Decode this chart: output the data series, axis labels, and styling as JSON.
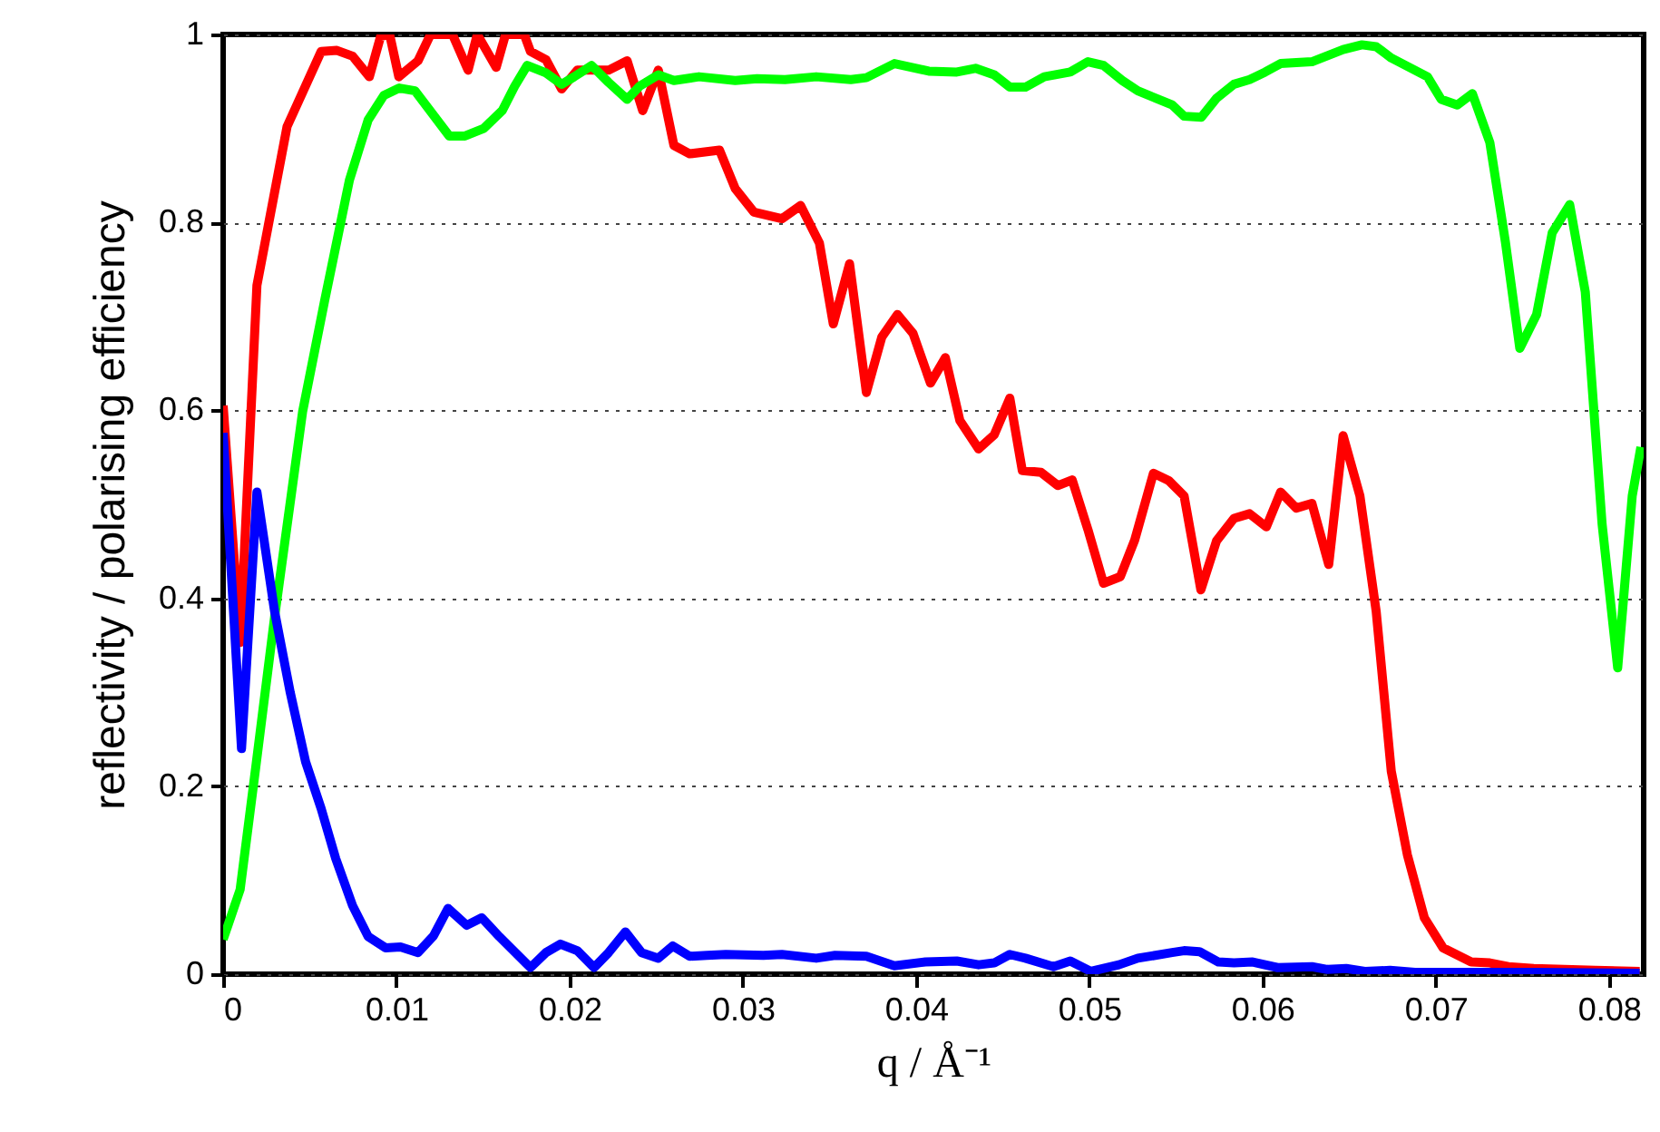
{
  "chart_data": {
    "type": "line",
    "xlabel": "q / Å⁻¹",
    "ylabel": "reflectivity / polarising efficiency",
    "xlim": [
      0,
      0.082
    ],
    "xticks": [
      0,
      0.01,
      0.02,
      0.03,
      0.04,
      0.05,
      0.06,
      0.07,
      0.08
    ],
    "ylim": [
      0,
      1
    ],
    "yticks": [
      0,
      0.2,
      0.4,
      0.6,
      0.8,
      1
    ],
    "grid": "y",
    "marker": "none",
    "line_style": "solid",
    "series": [
      {
        "color": "#ff0000",
        "x": [
          0,
          0.00098,
          0.00195,
          0.00369,
          0.00566,
          0.00657,
          0.00747,
          0.00844,
          0.00909,
          0.00961,
          0.01014,
          0.01125,
          0.01197,
          0.01324,
          0.01414,
          0.01467,
          0.01576,
          0.0163,
          0.01738,
          0.01774,
          0.01864,
          0.01954,
          0.02044,
          0.02225,
          0.02332,
          0.02422,
          0.02512,
          0.02602,
          0.02693,
          0.02865,
          0.02956,
          0.03064,
          0.03226,
          0.03333,
          0.03442,
          0.03522,
          0.03616,
          0.03713,
          0.03802,
          0.03892,
          0.03982,
          0.04083,
          0.04169,
          0.04253,
          0.04361,
          0.04451,
          0.04541,
          0.04613,
          0.04721,
          0.04818,
          0.04901,
          0.04992,
          0.05082,
          0.05179,
          0.05262,
          0.0537,
          0.0546,
          0.05547,
          0.05644,
          0.05734,
          0.05835,
          0.05925,
          0.06022,
          0.06104,
          0.06195,
          0.06285,
          0.06382,
          0.06465,
          0.06562,
          0.06656,
          0.06743,
          0.06836,
          0.06934,
          0.07042,
          0.07204,
          0.07312,
          0.07419,
          0.07565,
          0.07743,
          0.07921,
          0.08177
        ],
        "values": [
          0.605,
          0.353,
          0.733,
          0.902,
          0.982,
          0.983,
          0.977,
          0.955,
          0.998,
          1.0,
          0.955,
          0.972,
          1.0,
          1.0,
          0.962,
          1.0,
          0.965,
          1.0,
          1.0,
          0.982,
          0.973,
          0.942,
          0.962,
          0.962,
          0.972,
          0.919,
          0.962,
          0.882,
          0.873,
          0.877,
          0.836,
          0.811,
          0.804,
          0.818,
          0.778,
          0.692,
          0.756,
          0.619,
          0.678,
          0.702,
          0.682,
          0.629,
          0.656,
          0.589,
          0.559,
          0.574,
          0.613,
          0.536,
          0.534,
          0.52,
          0.526,
          0.473,
          0.416,
          0.423,
          0.462,
          0.533,
          0.525,
          0.509,
          0.409,
          0.461,
          0.485,
          0.49,
          0.476,
          0.513,
          0.496,
          0.501,
          0.436,
          0.573,
          0.509,
          0.386,
          0.216,
          0.127,
          0.06,
          0.028,
          0.013,
          0.012,
          0.008,
          0.006,
          0.005,
          0.004,
          0.003
        ]
      },
      {
        "color": "#00ff00",
        "x": [
          0,
          0.00098,
          0.00188,
          0.00297,
          0.00459,
          0.00585,
          0.00729,
          0.00837,
          0.00927,
          0.01017,
          0.01108,
          0.01305,
          0.01396,
          0.01504,
          0.01611,
          0.01683,
          0.01755,
          0.01864,
          0.01954,
          0.02026,
          0.02127,
          0.02225,
          0.02332,
          0.02404,
          0.02512,
          0.02602,
          0.02747,
          0.02956,
          0.03082,
          0.03243,
          0.03424,
          0.03623,
          0.03713,
          0.03875,
          0.04073,
          0.04235,
          0.04343,
          0.04451,
          0.04541,
          0.04631,
          0.0474,
          0.0489,
          0.04992,
          0.05082,
          0.0519,
          0.0528,
          0.05478,
          0.05547,
          0.05647,
          0.05734,
          0.05835,
          0.05925,
          0.06015,
          0.06104,
          0.06285,
          0.06465,
          0.06574,
          0.06656,
          0.06743,
          0.06952,
          0.07031,
          0.07124,
          0.07211,
          0.07312,
          0.07402,
          0.07485,
          0.07582,
          0.07672,
          0.07773,
          0.07863,
          0.0796,
          0.0805,
          0.08134,
          0.08184
        ],
        "values": [
          0.037,
          0.09,
          0.22,
          0.38,
          0.599,
          0.716,
          0.845,
          0.909,
          0.935,
          0.943,
          0.94,
          0.892,
          0.892,
          0.9,
          0.919,
          0.945,
          0.967,
          0.959,
          0.947,
          0.955,
          0.967,
          0.949,
          0.931,
          0.945,
          0.957,
          0.951,
          0.955,
          0.951,
          0.953,
          0.952,
          0.955,
          0.952,
          0.954,
          0.969,
          0.961,
          0.96,
          0.964,
          0.957,
          0.944,
          0.944,
          0.955,
          0.96,
          0.971,
          0.967,
          0.951,
          0.94,
          0.925,
          0.913,
          0.912,
          0.932,
          0.947,
          0.952,
          0.96,
          0.969,
          0.971,
          0.984,
          0.989,
          0.987,
          0.975,
          0.955,
          0.931,
          0.925,
          0.937,
          0.885,
          0.779,
          0.666,
          0.702,
          0.789,
          0.819,
          0.726,
          0.479,
          0.326,
          0.509,
          0.561
        ]
      },
      {
        "color": "#0000ff",
        "x": [
          0,
          0.00106,
          0.00195,
          0.00297,
          0.00387,
          0.00476,
          0.00566,
          0.0065,
          0.00747,
          0.00837,
          0.00938,
          0.01024,
          0.01125,
          0.01215,
          0.01298,
          0.01406,
          0.01493,
          0.01594,
          0.01774,
          0.01864,
          0.01947,
          0.02044,
          0.02141,
          0.02225,
          0.02322,
          0.02415,
          0.02512,
          0.02596,
          0.02693,
          0.02793,
          0.02902,
          0.03118,
          0.03226,
          0.03424,
          0.03532,
          0.03713,
          0.03875,
          0.04054,
          0.04235,
          0.04361,
          0.04451,
          0.04541,
          0.04631,
          0.04793,
          0.0489,
          0.05009,
          0.05171,
          0.0528,
          0.05478,
          0.05547,
          0.05636,
          0.05745,
          0.05835,
          0.05943,
          0.06087,
          0.06285,
          0.06375,
          0.06483,
          0.06591,
          0.06736,
          0.0688,
          0.07204,
          0.07565,
          0.08177
        ],
        "values": [
          0.576,
          0.24,
          0.513,
          0.386,
          0.3,
          0.226,
          0.176,
          0.123,
          0.073,
          0.04,
          0.028,
          0.029,
          0.023,
          0.041,
          0.07,
          0.052,
          0.06,
          0.04,
          0.007,
          0.023,
          0.032,
          0.025,
          0.007,
          0.023,
          0.045,
          0.023,
          0.017,
          0.03,
          0.019,
          0.02,
          0.021,
          0.02,
          0.021,
          0.017,
          0.02,
          0.019,
          0.009,
          0.013,
          0.014,
          0.01,
          0.012,
          0.021,
          0.017,
          0.008,
          0.014,
          0.003,
          0.01,
          0.017,
          0.023,
          0.025,
          0.024,
          0.013,
          0.012,
          0.013,
          0.007,
          0.008,
          0.005,
          0.006,
          0.003,
          0.004,
          0.002,
          0.002,
          0.002,
          0.001
        ]
      }
    ]
  }
}
